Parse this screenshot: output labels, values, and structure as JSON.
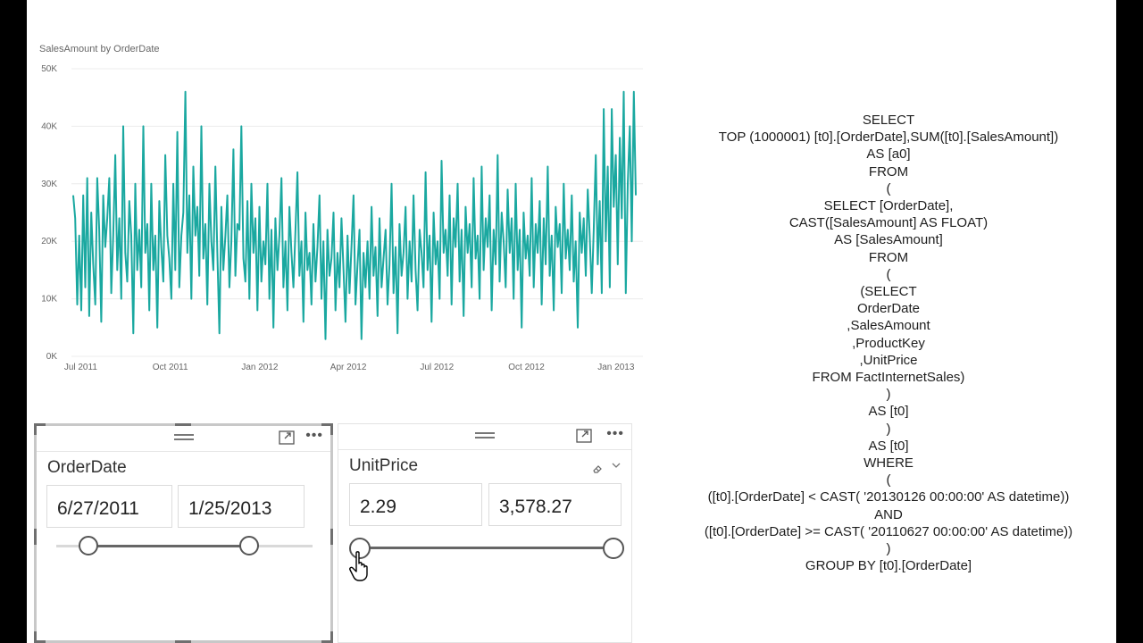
{
  "chart": {
    "title": "SalesAmount by OrderDate",
    "y_ticks": [
      "50K",
      "40K",
      "30K",
      "20K",
      "10K",
      "0K"
    ],
    "x_ticks": [
      "Jul 2011",
      "Oct 2011",
      "Jan 2012",
      "Apr 2012",
      "Jul 2012",
      "Oct 2012",
      "Jan 2013"
    ],
    "series_color": "#1aa8a0"
  },
  "chart_data": {
    "type": "line",
    "title": "SalesAmount by OrderDate",
    "xlabel": "",
    "ylabel": "",
    "x_range": [
      "2011-06-27",
      "2013-01-25"
    ],
    "ylim": [
      0,
      50000
    ],
    "grid": true,
    "series": [
      {
        "values": [
          28000,
          24000,
          9000,
          21000,
          8000,
          28000,
          12000,
          31000,
          7000,
          25000,
          16000,
          9000,
          31000,
          22000,
          6000,
          28000,
          19000,
          24000,
          31000,
          11000,
          21000,
          35000,
          15000,
          24000,
          10000,
          40000,
          18000,
          13000,
          27000,
          21000,
          4000,
          30000,
          15000,
          22000,
          12000,
          40000,
          18000,
          23000,
          8000,
          30000,
          15000,
          21000,
          5000,
          27000,
          19000,
          13000,
          35000,
          21000,
          17000,
          10000,
          30000,
          15000,
          39000,
          12000,
          21000,
          25000,
          46000,
          18000,
          28000,
          10000,
          33000,
          21000,
          26000,
          14000,
          40000,
          17000,
          23000,
          9000,
          30000,
          20000,
          15000,
          33000,
          18000,
          4000,
          26000,
          15000,
          21000,
          28000,
          12000,
          20000,
          36000,
          14000,
          23000,
          22000,
          40000,
          17000,
          13000,
          27000,
          10000,
          30000,
          18000,
          24000,
          8000,
          26000,
          13000,
          20000,
          16000,
          30000,
          10000,
          22000,
          5000,
          24000,
          15000,
          21000,
          31000,
          12000,
          20000,
          8000,
          26000,
          18000,
          12000,
          22000,
          32000,
          14000,
          20000,
          6000,
          25000,
          15000,
          18000,
          9000,
          23000,
          13000,
          19000,
          28000,
          10000,
          20000,
          3000,
          22000,
          14000,
          17000,
          25000,
          8000,
          18000,
          12000,
          24000,
          15000,
          6000,
          21000,
          11000,
          19000,
          28000,
          9000,
          16000,
          22000,
          3000,
          18000,
          12000,
          20000,
          10000,
          26000,
          14000,
          19000,
          7000,
          24000,
          12000,
          17000,
          22000,
          9000,
          16000,
          30000,
          11000,
          19000,
          4000,
          23000,
          14000,
          18000,
          26000,
          10000,
          20000,
          13000,
          28000,
          15000,
          8000,
          22000,
          18000,
          12000,
          32000,
          15000,
          21000,
          6000,
          25000,
          16000,
          20000,
          10000,
          34000,
          18000,
          22000,
          14000,
          28000,
          9000,
          24000,
          19000,
          30000,
          13000,
          22000,
          7000,
          26000,
          18000,
          23000,
          12000,
          31000,
          17000,
          21000,
          10000,
          33000,
          15000,
          24000,
          19000,
          28000,
          8000,
          22000,
          16000,
          35000,
          13000,
          25000,
          20000,
          12000,
          29000,
          18000,
          24000,
          10000,
          30000,
          15000,
          22000,
          5000,
          25000,
          17000,
          21000,
          14000,
          31000,
          12000,
          23000,
          18000,
          27000,
          9000,
          24000,
          16000,
          33000,
          14000,
          21000,
          8000,
          26000,
          19000,
          23000,
          11000,
          30000,
          17000,
          22000,
          15000,
          28000,
          13000,
          20000,
          5000,
          25000,
          18000,
          24000,
          14000,
          29000,
          21000,
          11000,
          22000,
          35000,
          16000,
          27000,
          11000,
          43000,
          20000,
          33000,
          12000,
          43000,
          26000,
          35000,
          16000,
          38000,
          24000,
          46000,
          11000,
          30000,
          40000,
          20000,
          46000,
          28000
        ]
      }
    ]
  },
  "slicers": {
    "orderdate": {
      "title": "OrderDate",
      "start": "6/27/2011",
      "end": "1/25/2013",
      "range_fraction": [
        0.16,
        0.66
      ]
    },
    "unitprice": {
      "title": "UnitPrice",
      "min": "2.29",
      "max": "3,578.27",
      "range_fraction": [
        0.0,
        1.0
      ]
    }
  },
  "icons": {
    "grip": "grip-icon",
    "focus": "focus-mode-icon",
    "more": "more-options-icon",
    "eraser": "eraser-icon",
    "chevron": "chevron-down-icon",
    "cursor": "hand-cursor-icon"
  },
  "sql": {
    "lines": [
      "SELECT",
      "TOP (1000001) [t0].[OrderDate],SUM([t0].[SalesAmount])",
      "AS [a0]",
      "FROM",
      "(",
      "SELECT [OrderDate],",
      "CAST([SalesAmount] AS FLOAT)",
      "AS [SalesAmount]",
      "FROM",
      "(",
      "(SELECT",
      "OrderDate",
      ",SalesAmount",
      ",ProductKey",
      ",UnitPrice",
      "FROM FactInternetSales)",
      ")",
      "AS [t0]",
      ")",
      "AS [t0]",
      "WHERE",
      "(",
      "([t0].[OrderDate] < CAST( '20130126 00:00:00' AS datetime))",
      "AND",
      "([t0].[OrderDate] >= CAST( '20110627 00:00:00' AS datetime))",
      ")",
      "GROUP BY [t0].[OrderDate]"
    ]
  }
}
